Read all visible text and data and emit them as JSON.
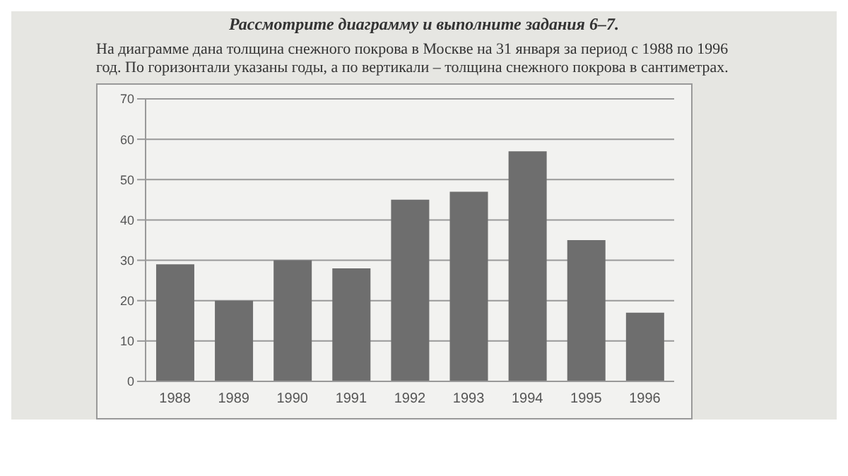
{
  "chart_data": {
    "type": "bar",
    "title": "Рассмотрите диаграмму и выполните задания 6–7.",
    "subtitle": "На диаграмме дана толщина снежного покрова в Москве на 31 января за период с 1988 по 1996 год. По горизонтали указаны годы, а по вертикали – толщина снежного покрова в сантиметрах.",
    "categories": [
      "1988",
      "1989",
      "1990",
      "1991",
      "1992",
      "1993",
      "1994",
      "1995",
      "1996"
    ],
    "values": [
      29,
      20,
      30,
      28,
      45,
      47,
      57,
      35,
      17
    ],
    "color": "#6e6e6e",
    "ylim": [
      0,
      70
    ],
    "yticks": [
      0,
      10,
      20,
      30,
      40,
      50,
      60,
      70
    ],
    "grid": "y",
    "legend": false
  }
}
